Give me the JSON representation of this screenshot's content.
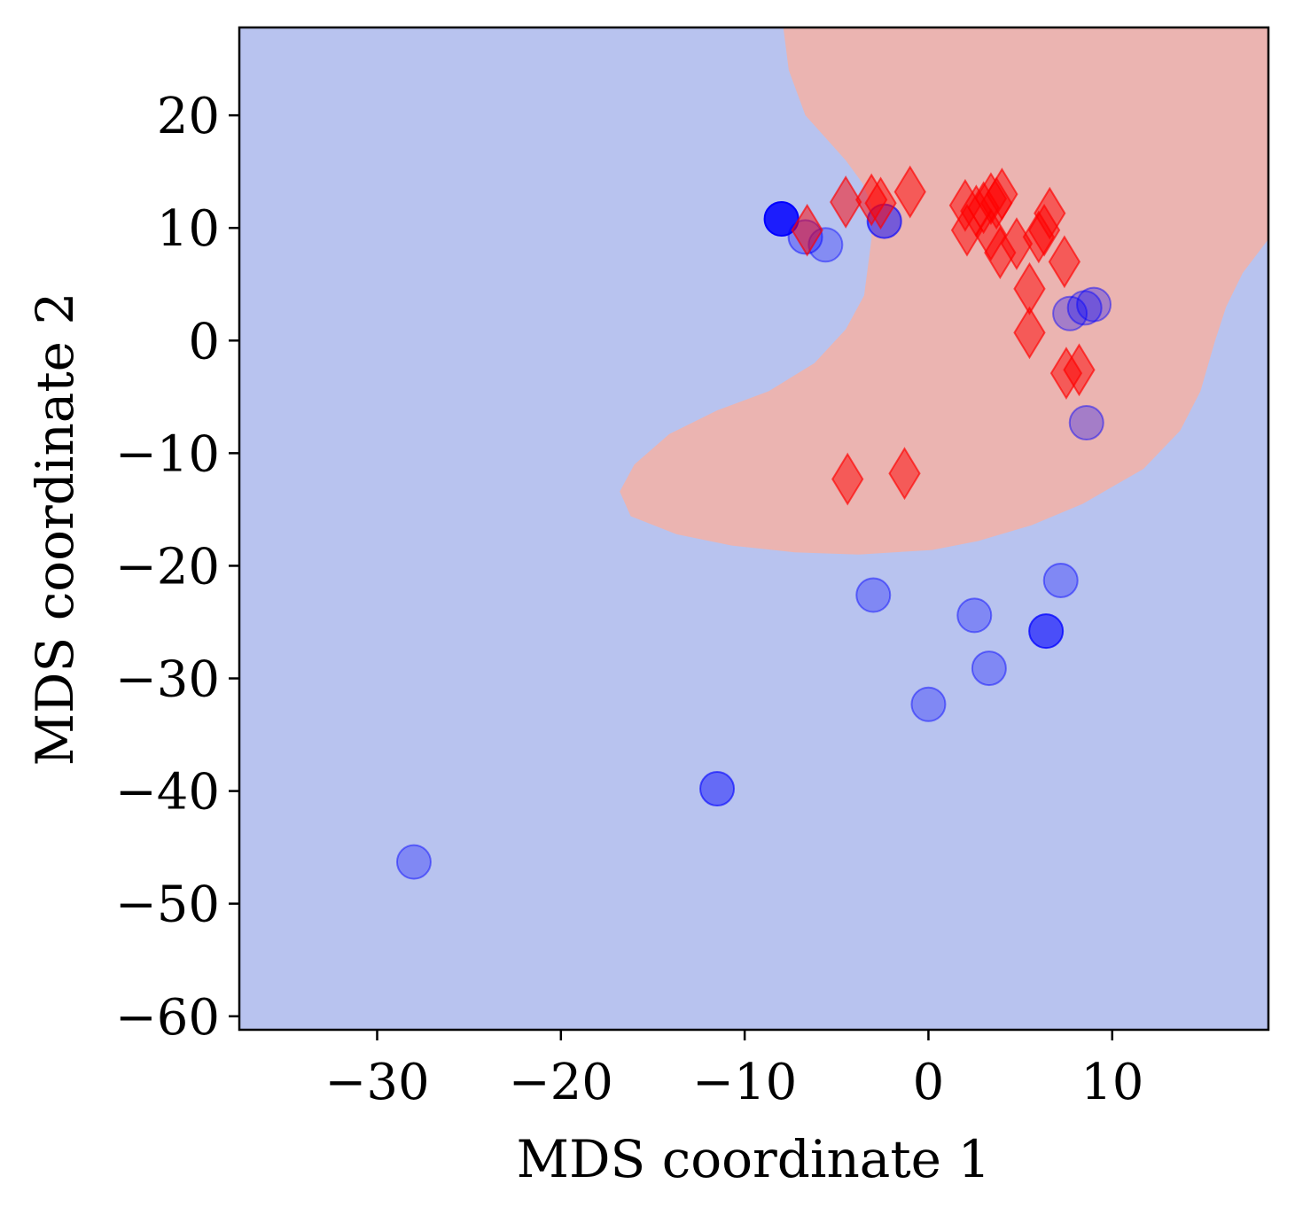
{
  "chart_data": {
    "type": "scatter",
    "xlabel": "MDS coordinate 1",
    "ylabel": "MDS coordinate 2",
    "xlim": [
      -37.5,
      18.5
    ],
    "ylim": [
      -61.2,
      27.8
    ],
    "x_ticks": [
      -30,
      -20,
      -10,
      0,
      10
    ],
    "x_tick_labels": [
      "−30",
      "−20",
      "−10",
      "0",
      "10"
    ],
    "y_ticks": [
      20,
      10,
      0,
      -10,
      -20,
      -30,
      -40,
      -50,
      -60
    ],
    "y_tick_labels": [
      "20",
      "10",
      "0",
      "−10",
      "−20",
      "−30",
      "−40",
      "−50",
      "−60"
    ],
    "grid": false,
    "background_regions": {
      "outer_color": "#b8c3ef",
      "decision_region_color": "#ebb4b1",
      "decision_region_boundary": [
        [
          -7.9,
          27.8
        ],
        [
          -7.6,
          24
        ],
        [
          -6.7,
          20
        ],
        [
          -5.6,
          18
        ],
        [
          -4.5,
          16
        ],
        [
          -3.6,
          14
        ],
        [
          -3.1,
          12
        ],
        [
          -3.1,
          9
        ],
        [
          -3.5,
          4
        ],
        [
          -4.5,
          1
        ],
        [
          -6.2,
          -2
        ],
        [
          -8.7,
          -4.5
        ],
        [
          -11.5,
          -6.2
        ],
        [
          -14.1,
          -8.3
        ],
        [
          -16,
          -11
        ],
        [
          -16.8,
          -13.4
        ],
        [
          -16.2,
          -15.6
        ],
        [
          -13.7,
          -17.2
        ],
        [
          -10.7,
          -18.2
        ],
        [
          -7.3,
          -18.8
        ],
        [
          -3.8,
          -19
        ],
        [
          0.2,
          -18.6
        ],
        [
          2.7,
          -17.8
        ],
        [
          5.6,
          -16.4
        ],
        [
          8.4,
          -14.5
        ],
        [
          11.7,
          -11.4
        ],
        [
          13.7,
          -8
        ],
        [
          14.8,
          -4.5
        ],
        [
          15.6,
          0
        ],
        [
          16.2,
          3
        ],
        [
          17.1,
          6
        ],
        [
          18.5,
          9
        ],
        [
          18.5,
          27.8
        ]
      ]
    },
    "series": [
      {
        "marker": "circle",
        "color": "#0000ff",
        "points": [
          {
            "x": -8.0,
            "y": 10.8,
            "alpha": 0.85
          },
          {
            "x": -6.7,
            "y": 9.2,
            "alpha": 0.32
          },
          {
            "x": -5.6,
            "y": 8.5,
            "alpha": 0.28
          },
          {
            "x": -2.4,
            "y": 10.6,
            "alpha": 0.5
          },
          {
            "x": 7.7,
            "y": 2.4,
            "alpha": 0.3
          },
          {
            "x": 8.5,
            "y": 2.9,
            "alpha": 0.3
          },
          {
            "x": 9.0,
            "y": 3.2,
            "alpha": 0.3
          },
          {
            "x": 8.6,
            "y": -7.3,
            "alpha": 0.3
          },
          {
            "x": 7.2,
            "y": -21.3,
            "alpha": 0.3
          },
          {
            "x": -3.0,
            "y": -22.6,
            "alpha": 0.3
          },
          {
            "x": 2.5,
            "y": -24.4,
            "alpha": 0.3
          },
          {
            "x": 6.4,
            "y": -25.8,
            "alpha": 0.6
          },
          {
            "x": 3.3,
            "y": -29.1,
            "alpha": 0.3
          },
          {
            "x": 0.0,
            "y": -32.3,
            "alpha": 0.3
          },
          {
            "x": -11.5,
            "y": -39.8,
            "alpha": 0.45
          },
          {
            "x": -28.0,
            "y": -46.3,
            "alpha": 0.3
          }
        ]
      },
      {
        "marker": "diamond",
        "color": "#ff0000",
        "points": [
          {
            "x": -6.6,
            "y": 9.8,
            "alpha": 0.5
          },
          {
            "x": -4.5,
            "y": 12.3,
            "alpha": 0.5
          },
          {
            "x": -3.1,
            "y": 12.5,
            "alpha": 0.5
          },
          {
            "x": -2.6,
            "y": 12.2,
            "alpha": 0.5
          },
          {
            "x": -1.0,
            "y": 13.2,
            "alpha": 0.5
          },
          {
            "x": 2.0,
            "y": 12.0,
            "alpha": 0.5
          },
          {
            "x": 2.6,
            "y": 11.5,
            "alpha": 0.5
          },
          {
            "x": 3.0,
            "y": 11.8,
            "alpha": 0.5
          },
          {
            "x": 3.4,
            "y": 12.6,
            "alpha": 0.5
          },
          {
            "x": 3.7,
            "y": 12.2,
            "alpha": 0.5
          },
          {
            "x": 4.0,
            "y": 13.0,
            "alpha": 0.5
          },
          {
            "x": 2.1,
            "y": 9.8,
            "alpha": 0.5
          },
          {
            "x": 3.4,
            "y": 9.4,
            "alpha": 0.5
          },
          {
            "x": 3.9,
            "y": 7.8,
            "alpha": 0.5
          },
          {
            "x": 4.8,
            "y": 8.6,
            "alpha": 0.5
          },
          {
            "x": 6.0,
            "y": 9.2,
            "alpha": 0.5
          },
          {
            "x": 6.3,
            "y": 9.8,
            "alpha": 0.5
          },
          {
            "x": 6.6,
            "y": 11.3,
            "alpha": 0.5
          },
          {
            "x": 7.4,
            "y": 7.0,
            "alpha": 0.5
          },
          {
            "x": 5.5,
            "y": 4.6,
            "alpha": 0.5
          },
          {
            "x": 5.5,
            "y": 0.7,
            "alpha": 0.5
          },
          {
            "x": 7.5,
            "y": -2.9,
            "alpha": 0.5
          },
          {
            "x": 8.2,
            "y": -2.6,
            "alpha": 0.5
          },
          {
            "x": -4.4,
            "y": -12.3,
            "alpha": 0.5
          },
          {
            "x": -1.3,
            "y": -11.8,
            "alpha": 0.5
          }
        ]
      }
    ]
  }
}
